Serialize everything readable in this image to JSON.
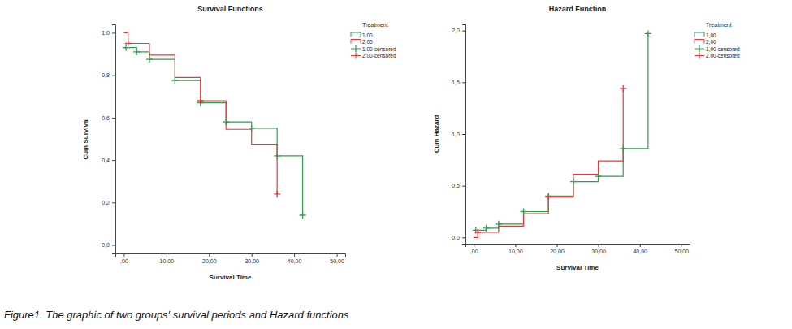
{
  "chart_data": [
    {
      "type": "line",
      "title": "Survival Functions",
      "x_label": "Survival Time",
      "y_label": "Cum Survival",
      "legend_title": "Treatment",
      "legend": "right",
      "xlim": [
        -2,
        52
      ],
      "xticks": [
        {
          "value": 0,
          "label": ",00"
        },
        {
          "value": 10,
          "label": "10,00"
        },
        {
          "value": 20,
          "label": "20,00"
        },
        {
          "value": 30,
          "label": "30,00"
        },
        {
          "value": 40,
          "label": "40,00"
        },
        {
          "value": 50,
          "label": "50,00"
        }
      ],
      "ylim": [
        -0.04,
        1.04
      ],
      "yticks": [
        {
          "value": 0,
          "label": "0,0"
        },
        {
          "value": 0.2,
          "label": "0,2"
        },
        {
          "value": 0.4,
          "label": "0,4"
        },
        {
          "value": 0.6,
          "label": "0,6"
        },
        {
          "value": 0.8,
          "label": "0,8"
        },
        {
          "value": 1,
          "label": "1,0"
        }
      ],
      "series": [
        {
          "name": "1,00",
          "type": "step",
          "color": "#2e9e4f",
          "x": [
            0,
            3,
            6,
            12,
            18,
            24,
            30,
            36,
            42
          ],
          "values": [
            0.93,
            0.91,
            0.875,
            0.775,
            0.67,
            0.58,
            0.55,
            0.42,
            0.14
          ]
        },
        {
          "name": "2,00",
          "type": "step",
          "color": "#e8383d",
          "x": [
            0,
            1,
            6,
            12,
            18,
            24,
            30,
            36
          ],
          "values": [
            1.0,
            0.95,
            0.895,
            0.79,
            0.68,
            0.545,
            0.475,
            0.24
          ]
        },
        {
          "name": "1,00-censored",
          "type": "scatter",
          "marker": "plus",
          "color": "#2e9e4f",
          "x": [
            0.5,
            3,
            6,
            12,
            18,
            24,
            30,
            36,
            42
          ],
          "values": [
            0.93,
            0.91,
            0.875,
            0.775,
            0.67,
            0.58,
            0.55,
            0.42,
            0.14
          ]
        },
        {
          "name": "2,00-censored",
          "type": "scatter",
          "marker": "plus",
          "color": "#e8383d",
          "x": [
            1,
            18,
            36
          ],
          "values": [
            0.95,
            0.68,
            0.24
          ]
        }
      ]
    },
    {
      "type": "line",
      "title": "Hazard Function",
      "x_label": "Survival Time",
      "y_label": "Cum Hazard",
      "legend_title": "Treatment",
      "legend": "right",
      "xlim": [
        -2,
        52
      ],
      "xticks": [
        {
          "value": 0,
          "label": ",00"
        },
        {
          "value": 10,
          "label": "10,00"
        },
        {
          "value": 20,
          "label": "20,00"
        },
        {
          "value": 30,
          "label": "30,00"
        },
        {
          "value": 40,
          "label": "40,00"
        },
        {
          "value": 50,
          "label": "50,00"
        }
      ],
      "ylim": [
        -0.06,
        2.06
      ],
      "yticks": [
        {
          "value": 0,
          "label": "0,0"
        },
        {
          "value": 0.5,
          "label": "0,5"
        },
        {
          "value": 1,
          "label": "1,0"
        },
        {
          "value": 1.5,
          "label": "1,5"
        },
        {
          "value": 2,
          "label": "2,0"
        }
      ],
      "series": [
        {
          "name": "1,00",
          "type": "step",
          "color": "#2e9e4f",
          "x": [
            0,
            3,
            6,
            12,
            18,
            24,
            30,
            36,
            42
          ],
          "values": [
            0.07,
            0.09,
            0.13,
            0.25,
            0.4,
            0.54,
            0.59,
            0.86,
            1.97
          ]
        },
        {
          "name": "2,00",
          "type": "step",
          "color": "#e8383d",
          "x": [
            0,
            1,
            6,
            12,
            18,
            24,
            30,
            36
          ],
          "values": [
            0,
            0.05,
            0.11,
            0.23,
            0.39,
            0.61,
            0.74,
            1.44
          ]
        },
        {
          "name": "1,00-censored",
          "type": "scatter",
          "marker": "plus",
          "color": "#2e9e4f",
          "x": [
            0.5,
            3,
            6,
            12,
            18,
            24,
            30,
            36,
            42
          ],
          "values": [
            0.07,
            0.09,
            0.13,
            0.25,
            0.4,
            0.54,
            0.59,
            0.86,
            1.97
          ]
        },
        {
          "name": "2,00-censored",
          "type": "scatter",
          "marker": "plus",
          "color": "#e8383d",
          "x": [
            1,
            18,
            36
          ],
          "values": [
            0.05,
            0.39,
            1.44
          ]
        }
      ]
    }
  ],
  "caption": "Figure1. The graphic of two groups' survival periods and Hazard functions"
}
